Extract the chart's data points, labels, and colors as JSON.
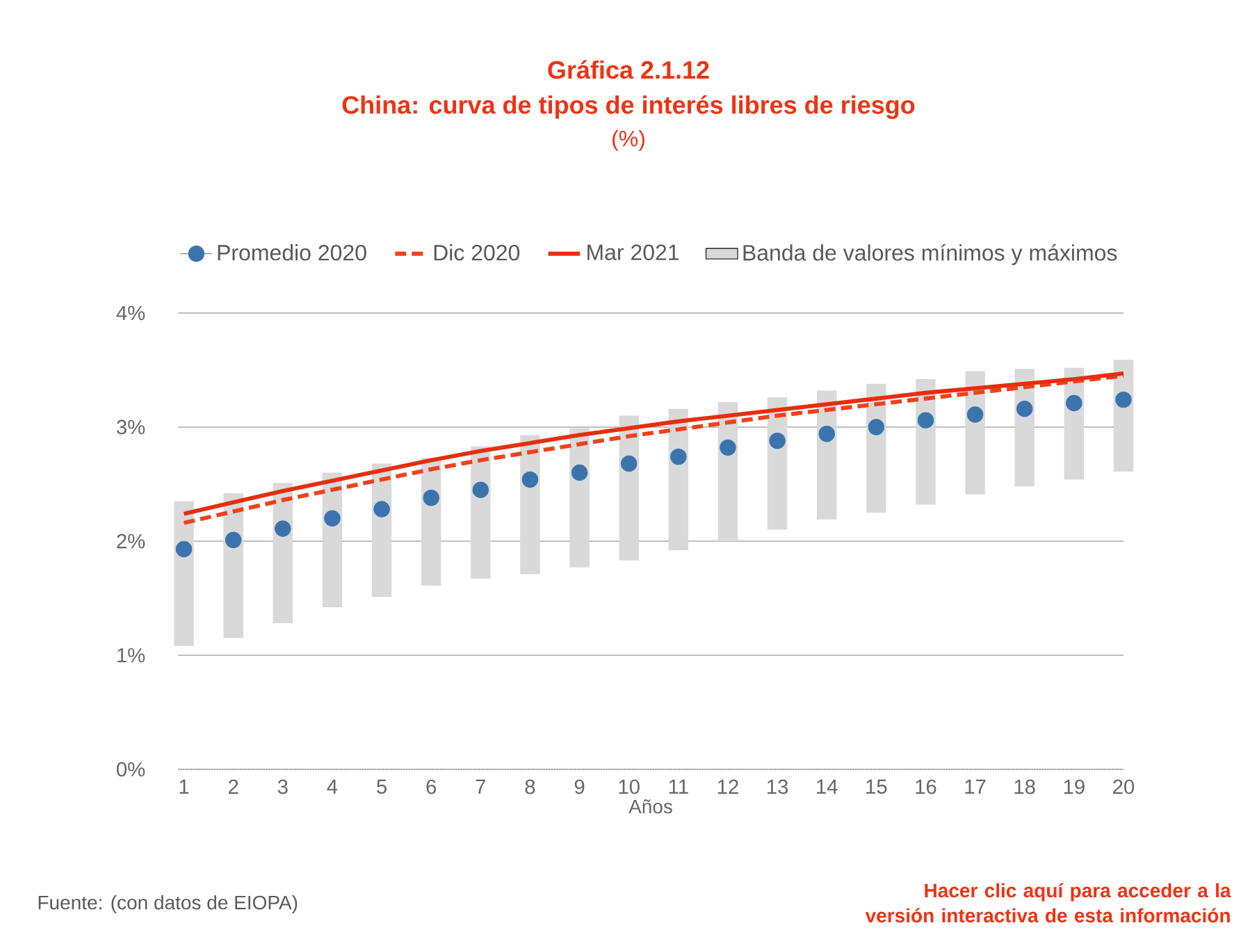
{
  "chart_data": {
    "type": "line",
    "title": "Gráfica 2.1.12",
    "subtitle": "China: curva de tipos de interés libres de riesgo",
    "xlabel": "Años",
    "annotations": [
      "(%)",
      "Fuente: (con datos de EIOPA)",
      "Hacer clic aquí para acceder a la versión interactiva de esta información"
    ],
    "categories": [
      "1",
      "2",
      "3",
      "4",
      "5",
      "6",
      "7",
      "8",
      "9",
      "10",
      "11",
      "12",
      "13",
      "14",
      "15",
      "16",
      "17",
      "18",
      "19",
      "20"
    ],
    "series": [
      {
        "name": "Promedio 2020",
        "type": "scatter",
        "color": "#3b74ad",
        "values": [
          1.93,
          2.01,
          2.11,
          2.2,
          2.28,
          2.38,
          2.45,
          2.54,
          2.6,
          2.68,
          2.74,
          2.82,
          2.88,
          2.94,
          3.0,
          3.06,
          3.11,
          3.16,
          3.21,
          3.24
        ]
      },
      {
        "name": "Dic 2020",
        "marker": "none",
        "line_style": "dashed",
        "color": "#f2401c",
        "values": [
          2.16,
          2.26,
          2.36,
          2.45,
          2.54,
          2.63,
          2.71,
          2.78,
          2.85,
          2.92,
          2.98,
          3.04,
          3.1,
          3.15,
          3.2,
          3.25,
          3.3,
          3.35,
          3.4,
          3.45
        ]
      },
      {
        "name": "Mar 2021",
        "marker": "none",
        "line_style": "solid",
        "color": "#e62e0e",
        "values": [
          2.24,
          2.34,
          2.44,
          2.53,
          2.62,
          2.71,
          2.79,
          2.86,
          2.93,
          2.99,
          3.05,
          3.1,
          3.15,
          3.2,
          3.25,
          3.3,
          3.34,
          3.38,
          3.42,
          3.47
        ]
      },
      {
        "name": "Banda de valores mínimos y máximos",
        "type": "bar",
        "color": "#d9d9d9",
        "base": [
          1.08,
          1.15,
          1.28,
          1.42,
          1.51,
          1.61,
          1.67,
          1.71,
          1.77,
          1.83,
          1.92,
          2.0,
          2.1,
          2.19,
          2.25,
          2.32,
          2.41,
          2.48,
          2.54,
          2.61
        ],
        "values": [
          1.27,
          1.27,
          1.23,
          1.18,
          1.17,
          1.12,
          1.16,
          1.22,
          1.22,
          1.27,
          1.24,
          1.22,
          1.16,
          1.13,
          1.13,
          1.1,
          1.08,
          1.03,
          0.98,
          0.98
        ]
      }
    ],
    "ylim": [
      0,
      4
    ],
    "yticks": [
      {
        "value": 0,
        "label": "0%"
      },
      {
        "value": 1,
        "label": "1%"
      },
      {
        "value": 2,
        "label": "2%"
      },
      {
        "value": 3,
        "label": "3%"
      },
      {
        "value": 4,
        "label": "4%"
      }
    ],
    "grid": "y",
    "legend": "top",
    "marker": "circle"
  }
}
